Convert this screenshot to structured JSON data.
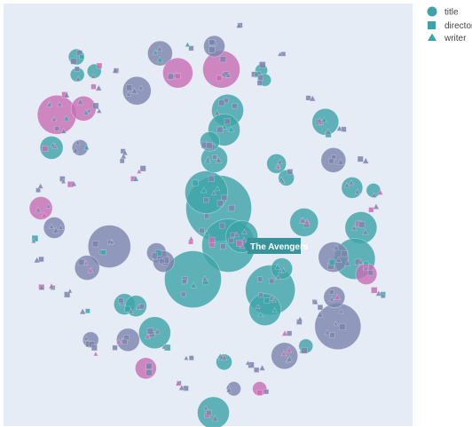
{
  "colors": {
    "plot_bg": "#e5ecf6",
    "teal": "#3ca4a8",
    "slate": "#7b85ad",
    "magenta": "#c86db4",
    "hover_bg": "#38939a"
  },
  "legend": [
    {
      "label": "title",
      "symbol": "circle"
    },
    {
      "label": "director",
      "symbol": "square"
    },
    {
      "label": "writer",
      "symbol": "triangle-up"
    }
  ],
  "hover": {
    "label": "The Avengers"
  },
  "chart_data": {
    "type": "scatter",
    "title": "",
    "xlabel": "",
    "ylabel": "",
    "legend_placement": "top-right, outside plot",
    "grid": false,
    "axes_visible": false,
    "xlim": [
      0,
      460
    ],
    "ylim": [
      -475,
      0
    ],
    "series": [
      {
        "name": "title",
        "symbol": "circle"
      },
      {
        "name": "director",
        "symbol": "square"
      },
      {
        "name": "writer",
        "symbol": "triangle-up"
      }
    ],
    "bubbles": [
      {
        "x": 242,
        "y": -230,
        "size": 37,
        "color": "teal"
      },
      {
        "x": 228,
        "y": -212,
        "size": 24,
        "color": "teal"
      },
      {
        "x": 253,
        "y": -272,
        "size": 30,
        "color": "teal"
      },
      {
        "x": 268,
        "y": -262,
        "size": 18,
        "color": "teal"
      },
      {
        "x": 213,
        "y": -310,
        "size": 32,
        "color": "teal"
      },
      {
        "x": 300,
        "y": -322,
        "size": 28,
        "color": "teal"
      },
      {
        "x": 294,
        "y": -344,
        "size": 18,
        "color": "teal"
      },
      {
        "x": 252,
        "y": -120,
        "size": 18,
        "color": "teal"
      },
      {
        "x": 248,
        "y": -142,
        "size": 18,
        "color": "teal"
      },
      {
        "x": 237,
        "y": -175,
        "size": 15,
        "color": "teal"
      },
      {
        "x": 232,
        "y": -155,
        "size": 11,
        "color": "teal"
      },
      {
        "x": 338,
        "y": -246,
        "size": 16,
        "color": "teal"
      },
      {
        "x": 402,
        "y": -252,
        "size": 18,
        "color": "teal"
      },
      {
        "x": 395,
        "y": -287,
        "size": 23,
        "color": "teal"
      },
      {
        "x": 376,
        "y": -363,
        "size": 26,
        "color": "slate"
      },
      {
        "x": 372,
        "y": -330,
        "size": 12,
        "color": "slate"
      },
      {
        "x": 371,
        "y": -285,
        "size": 17,
        "color": "slate"
      },
      {
        "x": 170,
        "y": -370,
        "size": 18,
        "color": "teal"
      },
      {
        "x": 140,
        "y": -378,
        "size": 13,
        "color": "slate"
      },
      {
        "x": 316,
        "y": -396,
        "size": 15,
        "color": "slate"
      },
      {
        "x": 340,
        "y": -385,
        "size": 8,
        "color": "teal"
      },
      {
        "x": 236,
        "y": -460,
        "size": 18,
        "color": "teal"
      },
      {
        "x": 119,
        "y": -273,
        "size": 24,
        "color": "slate"
      },
      {
        "x": 94,
        "y": -297,
        "size": 14,
        "color": "slate"
      },
      {
        "x": 60,
        "y": -125,
        "size": 22,
        "color": "magenta"
      },
      {
        "x": 90,
        "y": -118,
        "size": 14,
        "color": "magenta"
      },
      {
        "x": 54,
        "y": -162,
        "size": 13,
        "color": "teal"
      },
      {
        "x": 86,
        "y": -162,
        "size": 9,
        "color": "slate"
      },
      {
        "x": 150,
        "y": -98,
        "size": 16,
        "color": "slate"
      },
      {
        "x": 176,
        "y": -56,
        "size": 14,
        "color": "slate"
      },
      {
        "x": 196,
        "y": -78,
        "size": 17,
        "color": "magenta"
      },
      {
        "x": 245,
        "y": -74,
        "size": 21,
        "color": "magenta"
      },
      {
        "x": 237,
        "y": -48,
        "size": 12,
        "color": "slate"
      },
      {
        "x": 83,
        "y": -80,
        "size": 8,
        "color": "teal"
      },
      {
        "x": 362,
        "y": -133,
        "size": 15,
        "color": "teal"
      },
      {
        "x": 371,
        "y": -176,
        "size": 14,
        "color": "slate"
      },
      {
        "x": 392,
        "y": -207,
        "size": 12,
        "color": "teal"
      },
      {
        "x": 416,
        "y": -210,
        "size": 8,
        "color": "teal"
      },
      {
        "x": 307,
        "y": -180,
        "size": 11,
        "color": "teal"
      },
      {
        "x": 318,
        "y": -196,
        "size": 9,
        "color": "teal"
      },
      {
        "x": 42,
        "y": -230,
        "size": 13,
        "color": "magenta"
      },
      {
        "x": 57,
        "y": -252,
        "size": 12,
        "color": "slate"
      },
      {
        "x": 408,
        "y": -304,
        "size": 12,
        "color": "magenta"
      },
      {
        "x": 136,
        "y": -338,
        "size": 12,
        "color": "teal"
      },
      {
        "x": 149,
        "y": -340,
        "size": 12,
        "color": "teal"
      },
      {
        "x": 172,
        "y": -280,
        "size": 11,
        "color": "slate"
      },
      {
        "x": 180,
        "y": -290,
        "size": 12,
        "color": "slate"
      },
      {
        "x": 313,
        "y": -298,
        "size": 12,
        "color": "teal"
      },
      {
        "x": 160,
        "y": -410,
        "size": 12,
        "color": "magenta"
      },
      {
        "x": 98,
        "y": -378,
        "size": 9,
        "color": "slate"
      },
      {
        "x": 288,
        "y": -433,
        "size": 8,
        "color": "magenta"
      },
      {
        "x": 259,
        "y": -433,
        "size": 8,
        "color": "slate"
      },
      {
        "x": 248,
        "y": -403,
        "size": 9,
        "color": "teal"
      },
      {
        "x": 82,
        "y": -60,
        "size": 9,
        "color": "teal"
      },
      {
        "x": 102,
        "y": -76,
        "size": 8,
        "color": "teal"
      },
      {
        "x": 290,
        "y": -75,
        "size": 7,
        "color": "teal"
      },
      {
        "x": 294,
        "y": -86,
        "size": 7,
        "color": "teal"
      }
    ]
  }
}
